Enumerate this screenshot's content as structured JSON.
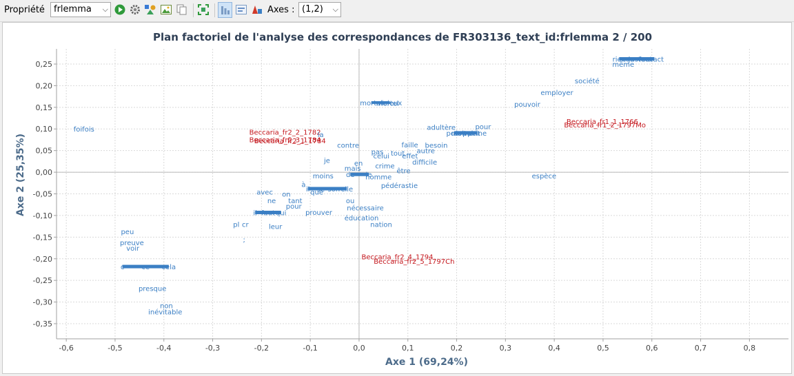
{
  "toolbar": {
    "property_label": "Propriété",
    "property_value": "frlemma",
    "axes_label": "Axes :",
    "axes_value": "(1,2)",
    "icons": [
      "run-icon",
      "settings-gear-icon",
      "shapes-icon",
      "export-image-icon",
      "copy-icon",
      "fit-zoom-icon",
      "show-columns-icon",
      "show-rows-icon",
      "label-toggle-icon"
    ]
  },
  "colors": {
    "column_points": "#c4161c",
    "row_points": "#3b7fc4",
    "title": "#2f3f55",
    "axis_label": "#4c6b8a",
    "grid": "#d9d9d9",
    "axis": "#a0a0a0"
  },
  "chart_data": {
    "type": "scatter",
    "title": "Plan factoriel de l'analyse des correspondances de FR303136_text_id:frlemma 2 / 200",
    "xlabel": "Axe 1 (69,24%)",
    "ylabel": "Axe 2 (25,35%)",
    "xlim": [
      -0.62,
      0.88
    ],
    "ylim": [
      -0.385,
      0.285
    ],
    "grid": true,
    "xticks": [
      -0.6,
      -0.5,
      -0.4,
      -0.3,
      -0.2,
      -0.1,
      0,
      0.1,
      0.2,
      0.3,
      0.4,
      0.5,
      0.6,
      0.7,
      0.8
    ],
    "yticks": [
      -0.35,
      -0.3,
      -0.25,
      -0.2,
      -0.15,
      -0.1,
      -0.05,
      0,
      0.05,
      0.1,
      0.15,
      0.2,
      0.25
    ],
    "xtick_labels": [
      "-0,6",
      "-0,5",
      "-0,4",
      "-0,3",
      "-0,2",
      "-0,1",
      "0,0",
      "0,1",
      "0,2",
      "0,3",
      "0,4",
      "0,5",
      "0,6",
      "0,7",
      "0,8"
    ],
    "ytick_labels": [
      "-0,35",
      "-0,30",
      "-0,25",
      "-0,20",
      "-0,15",
      "-0,10",
      "-0,05",
      "0,00",
      "0,05",
      "0,10",
      "0,15",
      "0,20",
      "0,25"
    ],
    "series": [
      {
        "name": "columns",
        "points": [
          {
            "label": "Beccaria_fr2_2_1782",
            "x": -0.225,
            "y": 0.093
          },
          {
            "label": "Beccaria_fr2_3_1784",
            "x": -0.225,
            "y": 0.076
          },
          {
            "label": "Beccaria_fr2_1_1784",
            "x": -0.215,
            "y": 0.073
          },
          {
            "label": "Beccaria_fr2_4_1794",
            "x": 0.005,
            "y": -0.195
          },
          {
            "label": "Beccaria_fr2_5_1797Ch",
            "x": 0.03,
            "y": -0.205
          },
          {
            "label": "Beccaria_fr1_1_1766",
            "x": 0.425,
            "y": 0.118
          },
          {
            "label": "Beccaria_fr1_2_1797Mo",
            "x": 0.42,
            "y": 0.11
          }
        ]
      },
      {
        "name": "rows",
        "points": [
          {
            "label": "foifois",
            "x": -0.585,
            "y": 0.1
          },
          {
            "label": "la",
            "x": -0.085,
            "y": 0.088
          },
          {
            "label": "contre",
            "x": -0.045,
            "y": 0.063
          },
          {
            "label": "je",
            "x": -0.072,
            "y": 0.028
          },
          {
            "label": "mais",
            "x": -0.03,
            "y": 0.01
          },
          {
            "label": "en",
            "x": -0.01,
            "y": 0.022
          },
          {
            "label": "pas",
            "x": 0.025,
            "y": 0.048
          },
          {
            "label": "moins",
            "x": -0.095,
            "y": -0.008
          },
          {
            "label": "à",
            "x": -0.118,
            "y": -0.028
          },
          {
            "label": "que",
            "x": -0.1,
            "y": -0.045
          },
          {
            "label": "on",
            "x": -0.158,
            "y": -0.05
          },
          {
            "label": "avec",
            "x": -0.21,
            "y": -0.045
          },
          {
            "label": "ne",
            "x": -0.188,
            "y": -0.065
          },
          {
            "label": "tant",
            "x": -0.145,
            "y": -0.065
          },
          {
            "label": "prouver",
            "x": -0.11,
            "y": -0.092
          },
          {
            "label": "pour",
            "x": -0.15,
            "y": -0.078
          },
          {
            "label": "ou",
            "x": -0.027,
            "y": -0.065
          },
          {
            "label": "nécessaire",
            "x": -0.025,
            "y": -0.082
          },
          {
            "label": "éducation",
            "x": -0.03,
            "y": -0.105
          },
          {
            "label": "nation",
            "x": 0.023,
            "y": -0.12
          },
          {
            "label": "leur",
            "x": -0.185,
            "y": -0.125
          },
          {
            "label": "pl",
            "x": -0.258,
            "y": -0.12
          },
          {
            "label": "cr",
            "x": -0.24,
            "y": -0.12
          },
          {
            "label": ";",
            "x": -0.238,
            "y": -0.155
          },
          {
            "label": "peu",
            "x": -0.488,
            "y": -0.137
          },
          {
            "label": "preuve",
            "x": -0.49,
            "y": -0.162
          },
          {
            "label": "voir",
            "x": -0.477,
            "y": -0.175
          },
          {
            "label": "presque",
            "x": -0.452,
            "y": -0.268
          },
          {
            "label": "non",
            "x": -0.408,
            "y": -0.308
          },
          {
            "label": "inévitable",
            "x": -0.432,
            "y": -0.322
          },
          {
            "label": "mortel",
            "x": 0.035,
            "y": 0.16
          },
          {
            "label": "crime",
            "x": 0.033,
            "y": 0.015
          },
          {
            "label": "être",
            "x": 0.077,
            "y": 0.004
          },
          {
            "label": "homme",
            "x": 0.013,
            "y": -0.01
          },
          {
            "label": "pédérastie",
            "x": 0.045,
            "y": -0.03
          },
          {
            "label": "celui",
            "x": 0.029,
            "y": 0.038
          },
          {
            "label": "tout",
            "x": 0.065,
            "y": 0.045
          },
          {
            "label": "effet",
            "x": 0.088,
            "y": 0.038
          },
          {
            "label": "faille",
            "x": 0.087,
            "y": 0.064
          },
          {
            "label": "autre",
            "x": 0.118,
            "y": 0.05
          },
          {
            "label": "besoin",
            "x": 0.135,
            "y": 0.063
          },
          {
            "label": "difficile",
            "x": 0.109,
            "y": 0.024
          },
          {
            "label": "adultère",
            "x": 0.139,
            "y": 0.104
          },
          {
            "label": "pour",
            "x": 0.238,
            "y": 0.106
          },
          {
            "label": "pouvoir",
            "x": 0.318,
            "y": 0.158
          },
          {
            "label": "employer",
            "x": 0.372,
            "y": 0.185
          },
          {
            "label": "société",
            "x": 0.442,
            "y": 0.212
          },
          {
            "label": "même",
            "x": 0.519,
            "y": 0.25
          },
          {
            "label": "espèce",
            "x": 0.354,
            "y": -0.008
          }
        ]
      }
    ],
    "clusters": [
      {
        "x1": 0.533,
        "x2": 0.605,
        "y": 0.262,
        "w": 5,
        "labels": [
          "rien",
          "cas",
          "juste",
          "faut",
          "exact"
        ]
      },
      {
        "x1": 0.195,
        "x2": 0.242,
        "y": 0.091,
        "w": 5,
        "labels": [
          "pour",
          "doit",
          "moment",
          "point",
          "peine"
        ]
      },
      {
        "x1": -0.105,
        "x2": -0.025,
        "y": -0.038,
        "w": 5,
        "labels": [
          "il",
          "se",
          "son",
          "elle"
        ]
      },
      {
        "x1": -0.213,
        "x2": -0.16,
        "y": -0.093,
        "w": 5,
        "labels": [
          "il",
          "faut",
          "qui"
        ]
      },
      {
        "x1": -0.485,
        "x2": -0.39,
        "y": -0.218,
        "w": 5,
        "labels": [
          "c",
          "ce",
          "cela"
        ]
      },
      {
        "x1": -0.018,
        "x2": 0.02,
        "y": -0.005,
        "w": 5,
        "labels": [
          "de",
          "le"
        ]
      },
      {
        "x1": 0.025,
        "x2": 0.063,
        "y": 0.161,
        "w": 4,
        "labels": [
          "mortel",
          "vicieux"
        ]
      }
    ]
  }
}
